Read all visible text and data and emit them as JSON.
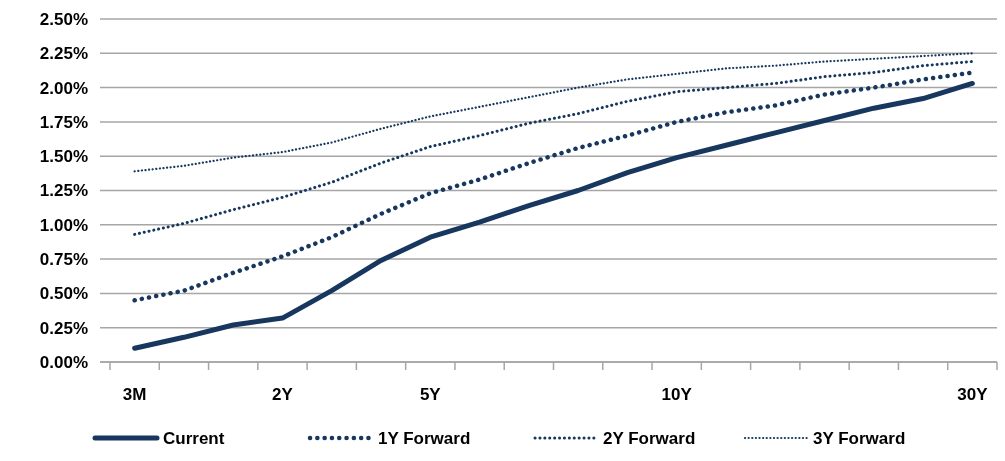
{
  "chart_data": {
    "type": "line",
    "categories": [
      "3M",
      null,
      null,
      "2Y",
      null,
      null,
      "5Y",
      null,
      null,
      null,
      null,
      "10Y",
      null,
      null,
      null,
      null,
      null,
      "30Y"
    ],
    "ylim": [
      0,
      2.5
    ],
    "yticks": [
      {
        "value": 0,
        "label": "0.00%"
      },
      {
        "value": 0.25,
        "label": "0.25%"
      },
      {
        "value": 0.5,
        "label": "0.50%"
      },
      {
        "value": 0.75,
        "label": "0.75%"
      },
      {
        "value": 1,
        "label": "1.00%"
      },
      {
        "value": 1.25,
        "label": "1.25%"
      },
      {
        "value": 1.5,
        "label": "1.50%"
      },
      {
        "value": 1.75,
        "label": "1.75%"
      },
      {
        "value": 2,
        "label": "2.00%"
      },
      {
        "value": 2.25,
        "label": "2.25%"
      },
      {
        "value": 2.5,
        "label": "2.50%"
      }
    ],
    "grid": "y",
    "legend": "bottom",
    "marker": "none",
    "series": [
      {
        "name": "Current",
        "color": "#17375e",
        "line_style": "solid",
        "values": [
          0.1,
          0.18,
          0.27,
          0.32,
          0.52,
          0.74,
          0.91,
          1.02,
          1.14,
          1.25,
          1.38,
          1.49,
          1.58,
          1.67,
          1.76,
          1.85,
          1.92,
          2.03
        ]
      },
      {
        "name": "1Y Forward",
        "color": "#17375e",
        "line_style": "dotted",
        "values": [
          0.45,
          0.52,
          0.65,
          0.77,
          0.91,
          1.08,
          1.23,
          1.33,
          1.45,
          1.56,
          1.65,
          1.75,
          1.82,
          1.87,
          1.95,
          2.0,
          2.06,
          2.11
        ]
      },
      {
        "name": "2Y Forward",
        "color": "#17375e",
        "line_style": "dotted",
        "values": [
          0.93,
          1.01,
          1.11,
          1.2,
          1.31,
          1.45,
          1.57,
          1.65,
          1.74,
          1.81,
          1.9,
          1.97,
          2.0,
          2.03,
          2.08,
          2.11,
          2.16,
          2.19
        ]
      },
      {
        "name": "3Y Forward",
        "color": "#17375e",
        "line_style": "dotted",
        "values": [
          1.39,
          1.43,
          1.49,
          1.53,
          1.6,
          1.7,
          1.79,
          1.86,
          1.93,
          2.0,
          2.06,
          2.1,
          2.14,
          2.16,
          2.19,
          2.21,
          2.23,
          2.25
        ]
      }
    ]
  }
}
